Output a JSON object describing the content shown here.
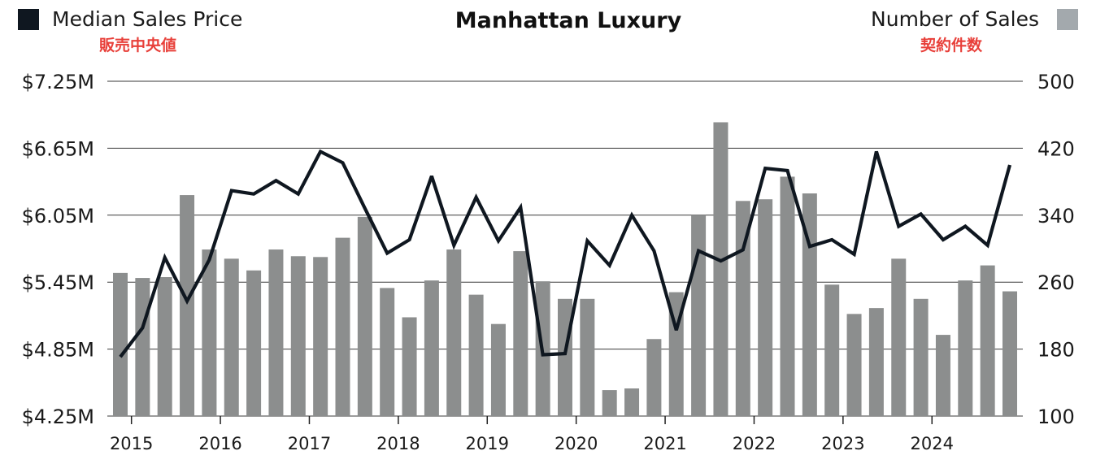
{
  "chart_data": {
    "type": "bar+line",
    "title": "Manhattan Luxury",
    "legend": [
      {
        "label": "Median Sales Price",
        "sublabel": "販売中央値",
        "color": "#0f1720",
        "position": "top-left"
      },
      {
        "label": "Number of Sales",
        "sublabel": "契約件数",
        "color": "#a3a9ad",
        "position": "top-right"
      }
    ],
    "colors": {
      "bar": "#8c8e8e",
      "line": "#0f1720",
      "grid": "#3a3a3a",
      "jp_text": "#e8403a"
    },
    "y_left": {
      "ticks": [
        "$7.25M",
        "$6.65M",
        "$6.05M",
        "$5.45M",
        "$4.85M",
        "$4.25M"
      ],
      "range": [
        4.25,
        7.25
      ],
      "unit": "$M"
    },
    "y_right": {
      "ticks": [
        "500",
        "420",
        "340",
        "260",
        "180",
        "100"
      ],
      "range": [
        100,
        500
      ]
    },
    "x_ticks": [
      "2015",
      "2016",
      "2017",
      "2018",
      "2019",
      "2020",
      "2021",
      "2022",
      "2023",
      "2024"
    ],
    "periods": [
      "2014 Q4",
      "2015 Q1",
      "2015 Q2",
      "2015 Q3",
      "2015 Q4",
      "2016 Q1",
      "2016 Q2",
      "2016 Q3",
      "2016 Q4",
      "2017 Q1",
      "2017 Q2",
      "2017 Q3",
      "2017 Q4",
      "2018 Q1",
      "2018 Q2",
      "2018 Q3",
      "2018 Q4",
      "2019 Q1",
      "2019 Q2",
      "2019 Q3",
      "2019 Q4",
      "2020 Q1",
      "2020 Q2",
      "2020 Q3",
      "2020 Q4",
      "2021 Q1",
      "2021 Q2",
      "2021 Q3",
      "2021 Q4",
      "2022 Q1",
      "2022 Q2",
      "2022 Q3",
      "2022 Q4",
      "2023 Q1",
      "2023 Q2",
      "2023 Q3",
      "2023 Q4",
      "2024 Q1",
      "2024 Q2",
      "2024 Q3",
      "2024 Q4"
    ],
    "series": [
      {
        "name": "Number of Sales",
        "type": "bar",
        "axis": "right",
        "values": [
          271,
          265,
          266,
          364,
          299,
          288,
          274,
          299,
          291,
          290,
          313,
          338,
          253,
          218,
          262,
          299,
          245,
          210,
          297,
          261,
          240,
          240,
          131,
          133,
          192,
          248,
          340,
          451,
          357,
          359,
          386,
          366,
          257,
          222,
          229,
          288,
          240,
          197,
          262,
          280,
          249
        ]
      },
      {
        "name": "Median Sales Price",
        "type": "line",
        "axis": "left",
        "values": [
          4.78,
          5.04,
          5.67,
          5.28,
          5.65,
          6.27,
          6.24,
          6.36,
          6.24,
          6.62,
          6.52,
          6.11,
          5.71,
          5.83,
          6.4,
          5.78,
          6.21,
          5.82,
          6.12,
          4.8,
          4.81,
          5.82,
          5.6,
          6.05,
          5.73,
          5.02,
          5.73,
          5.64,
          5.74,
          6.47,
          6.45,
          5.77,
          5.83,
          5.7,
          6.62,
          5.95,
          6.06,
          5.83,
          5.95,
          5.78,
          6.5
        ]
      }
    ]
  }
}
